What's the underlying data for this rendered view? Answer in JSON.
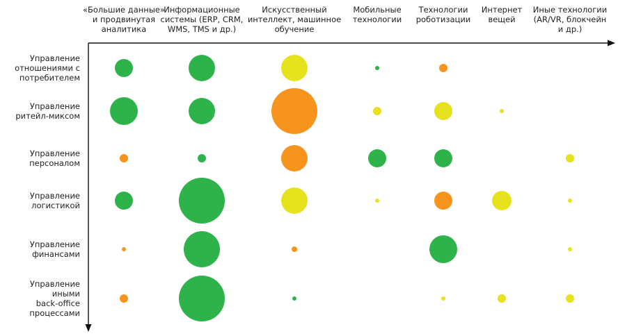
{
  "chart_data": {
    "type": "bubble-matrix",
    "title": "",
    "columns": [
      [
        "«Большие данные»",
        "и продвинутая",
        "аналитика"
      ],
      [
        "Информационные",
        "системы (ERP, CRM,",
        "WMS, TMS и др.)"
      ],
      [
        "Искусственный",
        "интеллект, машинное",
        "обучение"
      ],
      [
        "Мобильные",
        "технологии"
      ],
      [
        "Технологии",
        "роботизации"
      ],
      [
        "Интернет",
        "вещей"
      ],
      [
        "Иные технологии",
        "(AR/VR, блокчейн",
        "и др.)"
      ]
    ],
    "rows": [
      [
        "Управление",
        "отношениями с",
        "потребителем"
      ],
      [
        "Управление",
        "ритейл-миксом"
      ],
      [
        "Управление",
        "персоналом"
      ],
      [
        "Управление",
        "логистикой"
      ],
      [
        "Управление",
        "финансами"
      ],
      [
        "Управление",
        "иными",
        "back-office",
        "процессами"
      ]
    ],
    "legend_colors": {
      "green": "#2db34a",
      "yellow": "#e6e31e",
      "orange": "#f7941d"
    },
    "bubbles": [
      {
        "row": 0,
        "col": 0,
        "size": 13,
        "color": "green"
      },
      {
        "row": 0,
        "col": 1,
        "size": 19,
        "color": "green"
      },
      {
        "row": 0,
        "col": 2,
        "size": 19,
        "color": "yellow"
      },
      {
        "row": 0,
        "col": 3,
        "size": 3,
        "color": "green"
      },
      {
        "row": 0,
        "col": 4,
        "size": 6,
        "color": "orange"
      },
      {
        "row": 1,
        "col": 0,
        "size": 20,
        "color": "green"
      },
      {
        "row": 1,
        "col": 1,
        "size": 19,
        "color": "green"
      },
      {
        "row": 1,
        "col": 2,
        "size": 33,
        "color": "orange"
      },
      {
        "row": 1,
        "col": 3,
        "size": 6,
        "color": "yellow"
      },
      {
        "row": 1,
        "col": 4,
        "size": 13,
        "color": "yellow"
      },
      {
        "row": 1,
        "col": 5,
        "size": 3,
        "color": "yellow"
      },
      {
        "row": 2,
        "col": 0,
        "size": 6,
        "color": "orange"
      },
      {
        "row": 2,
        "col": 1,
        "size": 6,
        "color": "green"
      },
      {
        "row": 2,
        "col": 2,
        "size": 19,
        "color": "orange"
      },
      {
        "row": 2,
        "col": 3,
        "size": 13,
        "color": "green"
      },
      {
        "row": 2,
        "col": 4,
        "size": 13,
        "color": "green"
      },
      {
        "row": 2,
        "col": 6,
        "size": 6,
        "color": "yellow"
      },
      {
        "row": 3,
        "col": 0,
        "size": 13,
        "color": "green"
      },
      {
        "row": 3,
        "col": 1,
        "size": 33,
        "color": "green"
      },
      {
        "row": 3,
        "col": 2,
        "size": 19,
        "color": "yellow"
      },
      {
        "row": 3,
        "col": 3,
        "size": 3,
        "color": "yellow"
      },
      {
        "row": 3,
        "col": 4,
        "size": 13,
        "color": "orange"
      },
      {
        "row": 3,
        "col": 5,
        "size": 14,
        "color": "yellow"
      },
      {
        "row": 3,
        "col": 6,
        "size": 3,
        "color": "yellow"
      },
      {
        "row": 4,
        "col": 0,
        "size": 3,
        "color": "orange"
      },
      {
        "row": 4,
        "col": 1,
        "size": 26,
        "color": "green"
      },
      {
        "row": 4,
        "col": 2,
        "size": 4,
        "color": "orange"
      },
      {
        "row": 4,
        "col": 4,
        "size": 20,
        "color": "green"
      },
      {
        "row": 4,
        "col": 6,
        "size": 3,
        "color": "yellow"
      },
      {
        "row": 5,
        "col": 0,
        "size": 6,
        "color": "orange"
      },
      {
        "row": 5,
        "col": 1,
        "size": 33,
        "color": "green"
      },
      {
        "row": 5,
        "col": 2,
        "size": 3,
        "color": "green"
      },
      {
        "row": 5,
        "col": 4,
        "size": 3,
        "color": "yellow"
      },
      {
        "row": 5,
        "col": 5,
        "size": 6,
        "color": "yellow"
      },
      {
        "row": 5,
        "col": 6,
        "size": 6,
        "color": "yellow"
      }
    ]
  }
}
